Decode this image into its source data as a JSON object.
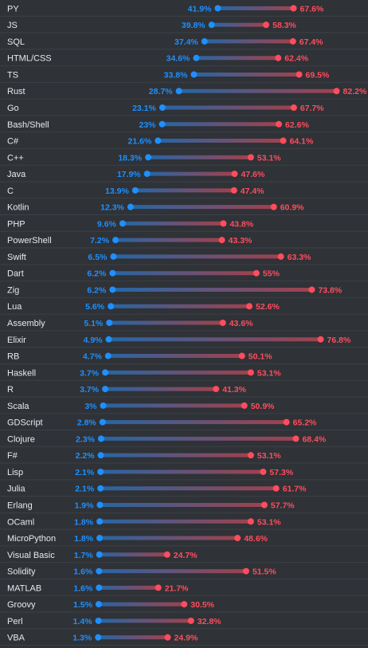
{
  "chart_data": {
    "type": "dumbbell",
    "colors": {
      "start": "#1e90ff",
      "end": "#ff4d5e",
      "background": "#2f3237",
      "divider": "#3d4046"
    },
    "x_range": [
      0,
      82.2
    ],
    "grid": false,
    "categories": [
      "PY",
      "JS",
      "SQL",
      "HTML/CSS",
      "TS",
      "Rust",
      "Go",
      "Bash/Shell",
      "C#",
      "C++",
      "Java",
      "C",
      "Kotlin",
      "PHP",
      "PowerShell",
      "Swift",
      "Dart",
      "Zig",
      "Lua",
      "Assembly",
      "Elixir",
      "RB",
      "Haskell",
      "R",
      "Scala",
      "GDScript",
      "Clojure",
      "F#",
      "Lisp",
      "Julia",
      "Erlang",
      "OCaml",
      "MicroPython",
      "Visual Basic",
      "Solidity",
      "MATLAB",
      "Groovy",
      "Perl",
      "VBA"
    ],
    "series": [
      {
        "values": [
          41.9,
          39.8,
          37.4,
          34.6,
          33.8,
          28.7,
          23.1,
          23,
          21.6,
          18.3,
          17.9,
          13.9,
          12.3,
          9.6,
          7.2,
          6.5,
          6.2,
          6.2,
          5.6,
          5.1,
          4.9,
          4.7,
          3.7,
          3.7,
          3,
          2.8,
          2.3,
          2.2,
          2.1,
          2.1,
          1.9,
          1.8,
          1.8,
          1.7,
          1.6,
          1.6,
          1.5,
          1.4,
          1.3
        ],
        "labels": [
          "41.9%",
          "39.8%",
          "37.4%",
          "34.6%",
          "33.8%",
          "28.7%",
          "23.1%",
          "23%",
          "21.6%",
          "18.3%",
          "17.9%",
          "13.9%",
          "12.3%",
          "9.6%",
          "7.2%",
          "6.5%",
          "6.2%",
          "6.2%",
          "5.6%",
          "5.1%",
          "4.9%",
          "4.7%",
          "3.7%",
          "3.7%",
          "3%",
          "2.8%",
          "2.3%",
          "2.2%",
          "2.1%",
          "2.1%",
          "1.9%",
          "1.8%",
          "1.8%",
          "1.7%",
          "1.6%",
          "1.6%",
          "1.5%",
          "1.4%",
          "1.3%"
        ]
      },
      {
        "values": [
          67.6,
          58.3,
          67.4,
          62.4,
          69.5,
          82.2,
          67.7,
          62.6,
          64.1,
          53.1,
          47.6,
          47.4,
          60.9,
          43.8,
          43.3,
          63.3,
          55,
          73.8,
          52.6,
          43.6,
          76.8,
          50.1,
          53.1,
          41.3,
          50.9,
          65.2,
          68.4,
          53.1,
          57.3,
          61.7,
          57.7,
          53.1,
          48.6,
          24.7,
          51.5,
          21.7,
          30.5,
          32.8,
          24.9
        ],
        "labels": [
          "67.6%",
          "58.3%",
          "67.4%",
          "62.4%",
          "69.5%",
          "82.2%",
          "67.7%",
          "62.6%",
          "64.1%",
          "53.1%",
          "47.6%",
          "47.4%",
          "60.9%",
          "43.8%",
          "43.3%",
          "63.3%",
          "55%",
          "73.8%",
          "52.6%",
          "43.6%",
          "76.8%",
          "50.1%",
          "53.1%",
          "41.3%",
          "50.9%",
          "65.2%",
          "68.4%",
          "53.1%",
          "57.3%",
          "61.7%",
          "57.7%",
          "53.1%",
          "48.6%",
          "24.7%",
          "51.5%",
          "21.7%",
          "30.5%",
          "32.8%",
          "24.9%"
        ]
      }
    ]
  }
}
